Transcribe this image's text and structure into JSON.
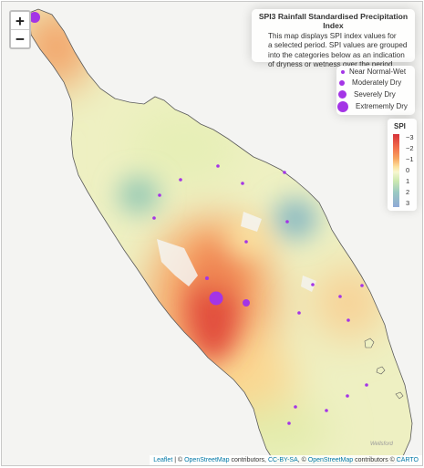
{
  "zoom": {
    "in_label": "+",
    "out_label": "−"
  },
  "info": {
    "title": "SPI3 Rainfall Standardised Precipitation Index",
    "lines": [
      "This map displays SPI index values for",
      "a selected period. SPI values are grouped",
      "into the categories below as an indication",
      "of dryness or wetness over the period."
    ]
  },
  "legend": {
    "items": [
      "Near Normal-Wet",
      "Moderately Dry",
      "Severely Dry",
      "Extrememly Dry"
    ],
    "marker_color": "#a435e6"
  },
  "spi_legend": {
    "title": "SPI",
    "ticks": [
      "−3",
      "−2",
      "−1",
      "0",
      "1",
      "2",
      "3"
    ]
  },
  "places": [
    "Wellsford"
  ],
  "attribution": {
    "leaflet": "Leaflet",
    "sep1": " | © ",
    "osm1": "OpenStreetMap",
    "contrib1": " contributors, ",
    "ccbysa": "CC-BY-SA",
    "sep2": ", © ",
    "osm2": "OpenStreetMap",
    "contrib2": " contributors © ",
    "carto": "CARTO"
  }
}
